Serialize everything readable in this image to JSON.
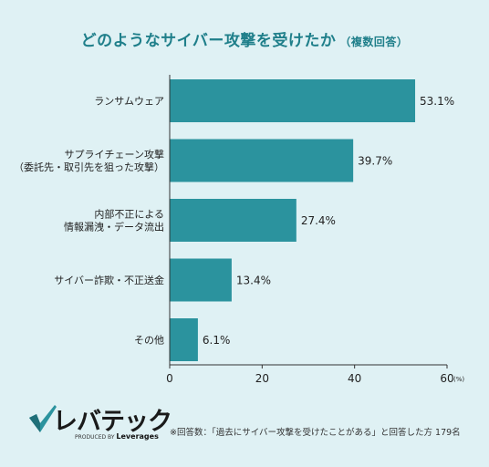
{
  "title": {
    "main": "どのようなサイバー攻撃を受けたか",
    "sub": "（複数回答）"
  },
  "colors": {
    "bar": "#2b939e",
    "background": "#dff1f4",
    "title": "#1f7f8a"
  },
  "chart_data": {
    "type": "bar",
    "orientation": "horizontal",
    "categories": [
      [
        "ランサムウェア"
      ],
      [
        "サプライチェーン攻撃",
        "（委託先・取引先を狙った攻撃）"
      ],
      [
        "内部不正による",
        "情報漏洩・データ流出"
      ],
      [
        "サイバー詐欺・不正送金"
      ],
      [
        "その他"
      ]
    ],
    "values": [
      53.1,
      39.7,
      27.4,
      13.4,
      6.1
    ],
    "value_labels": [
      "53.1%",
      "39.7%",
      "27.4%",
      "13.4%",
      "6.1%"
    ],
    "xlim": [
      0,
      60
    ],
    "xticks": [
      0,
      20,
      40,
      60
    ],
    "x_unit": "(%)",
    "grid": false
  },
  "logo": {
    "name": "レバテック",
    "tagline_prefix": "PRODUCED BY",
    "tagline_brand": "Leverages"
  },
  "footnote": "※回答数：「過去にサイバー攻撃を受けたことがある」と回答した方 179名"
}
